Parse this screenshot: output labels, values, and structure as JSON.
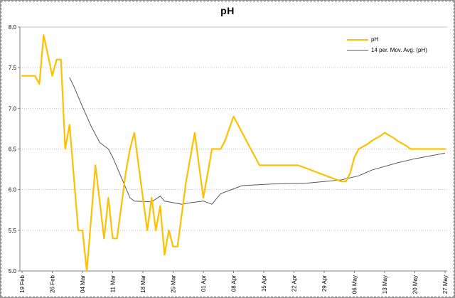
{
  "chart_data": {
    "type": "line",
    "title": "pH",
    "xlabel": "",
    "ylabel": "",
    "ylim": [
      5.0,
      8.0
    ],
    "ytick_labels": [
      "5.0",
      "5.5",
      "6.0",
      "6.5",
      "7.0",
      "7.5",
      "8.0"
    ],
    "xtick_labels": [
      "19 Feb",
      "26 Feb",
      "04 Mar",
      "11 Mar",
      "18 Mar",
      "25 Mar",
      "01 Apr",
      "08 Apr",
      "15 Apr",
      "22 Apr",
      "29 Apr",
      "06 May",
      "13 May",
      "20 May",
      "27 May"
    ],
    "xtick_interval_points": 7,
    "n_points": 99,
    "grid": "horizontal-dotted",
    "legend_position": "top-right",
    "legend": [
      {
        "label": "pH",
        "color": "#FFC000"
      },
      {
        "label": "14 per. Mov. Avg. (pH)",
        "color": "#595959"
      }
    ],
    "colors": {
      "ph_line": "#FFC000",
      "moving_avg_line": "#595959",
      "gridline": "#C3C3C3",
      "axis": "#808080",
      "text": "#000000"
    },
    "series": [
      {
        "name": "pH",
        "type": "daily-values-from-19-Feb",
        "values": [
          7.4,
          7.4,
          7.4,
          7.4,
          7.3,
          7.9,
          7.65,
          7.4,
          7.6,
          7.6,
          6.5,
          6.8,
          6.15,
          5.5,
          5.5,
          5.0,
          5.65,
          6.3,
          5.85,
          5.4,
          5.9,
          5.4,
          5.4,
          5.8,
          6.2,
          6.5,
          6.7,
          6.3,
          5.9,
          5.5,
          5.9,
          5.5,
          5.8,
          5.2,
          5.5,
          5.3,
          5.3,
          5.7,
          6.1,
          6.4,
          6.7,
          6.3,
          5.9,
          6.2,
          6.5,
          6.5,
          6.5,
          6.6,
          6.75,
          6.9,
          6.8,
          6.7,
          6.6,
          6.5,
          6.4,
          6.3,
          6.3,
          6.3,
          6.3,
          6.3,
          6.3,
          6.3,
          6.3,
          6.3,
          6.3,
          6.28,
          6.26,
          6.24,
          6.22,
          6.2,
          6.18,
          6.16,
          6.14,
          6.12,
          6.1,
          6.1,
          6.2,
          6.4,
          6.5,
          6.53,
          6.56,
          6.6,
          6.63,
          6.66,
          6.7,
          6.67,
          6.64,
          6.6,
          6.57,
          6.54,
          6.5,
          6.5,
          6.5,
          6.5,
          6.5,
          6.5,
          6.5,
          6.5,
          6.5
        ]
      },
      {
        "name": "14 per. Mov. Avg. (pH)",
        "type": "point-pairs-day-value",
        "points": [
          [
            11,
            7.38
          ],
          [
            12,
            7.27
          ],
          [
            14,
            7.02
          ],
          [
            16,
            6.78
          ],
          [
            18,
            6.58
          ],
          [
            20,
            6.5
          ],
          [
            21,
            6.4
          ],
          [
            23,
            6.15
          ],
          [
            25,
            5.9
          ],
          [
            26,
            5.86
          ],
          [
            30,
            5.85
          ],
          [
            32,
            5.92
          ],
          [
            33,
            5.86
          ],
          [
            37,
            5.82
          ],
          [
            39,
            5.84
          ],
          [
            42,
            5.86
          ],
          [
            44,
            5.82
          ],
          [
            46,
            5.95
          ],
          [
            51,
            6.05
          ],
          [
            58,
            6.07
          ],
          [
            66,
            6.08
          ],
          [
            70,
            6.1
          ],
          [
            74,
            6.12
          ],
          [
            78,
            6.17
          ],
          [
            81,
            6.24
          ],
          [
            87,
            6.33
          ],
          [
            91,
            6.38
          ],
          [
            98,
            6.45
          ]
        ]
      }
    ]
  }
}
